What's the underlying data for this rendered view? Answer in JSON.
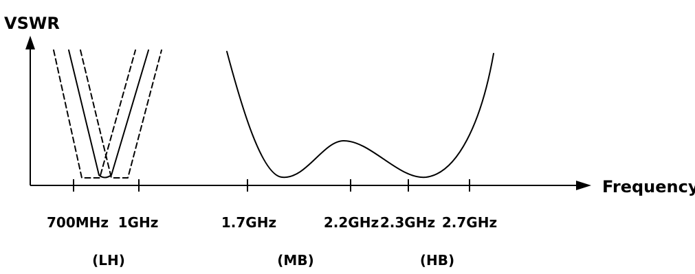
{
  "y_axis_label": "VSWR",
  "x_axis_label": "Frequency",
  "ticks": [
    {
      "label": "700MHz"
    },
    {
      "label": "1GHz"
    },
    {
      "label": "1.7GHz"
    },
    {
      "label": "2.2GHz"
    },
    {
      "label": "2.3GHz"
    },
    {
      "label": "2.7GHz"
    }
  ],
  "bands": [
    {
      "label": "(LH)"
    },
    {
      "label": "(MB)"
    },
    {
      "label": "(HB)"
    }
  ],
  "colors": {
    "line": "#000000",
    "background": "#ffffff"
  }
}
